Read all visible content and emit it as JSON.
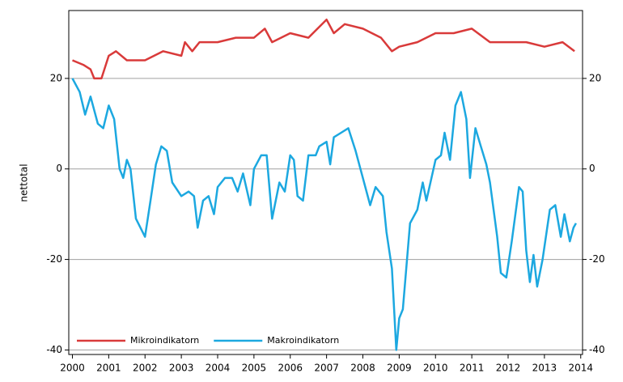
{
  "chart_data": {
    "type": "line",
    "y_label": "nettotal",
    "xlim": [
      1999.9,
      2014.05
    ],
    "ylim": [
      -41,
      35
    ],
    "xticks": [
      2000,
      2001,
      2002,
      2003,
      2004,
      2005,
      2006,
      2007,
      2008,
      2009,
      2010,
      2011,
      2012,
      2013,
      2014
    ],
    "yticks": [
      -40,
      -20,
      0,
      20
    ],
    "grid": true,
    "legend": "bottom-left",
    "series": [
      {
        "name": "Mikroindikatorn",
        "color": "#d93a3a",
        "x": [
          2000,
          2000.3,
          2000.5,
          2000.6,
          2000.8,
          2001,
          2001.2,
          2001.5,
          2002,
          2002.5,
          2003,
          2003.1,
          2003.3,
          2003.5,
          2004,
          2004.5,
          2005,
          2005.3,
          2005.5,
          2006,
          2006.5,
          2007,
          2007.2,
          2007.5,
          2008,
          2008.5,
          2008.8,
          2009,
          2009.5,
          2010,
          2010.5,
          2011,
          2011.5,
          2012,
          2012.5,
          2013,
          2013.5,
          2013.83
        ],
        "values": [
          24,
          23,
          22,
          20,
          20,
          25,
          26,
          24,
          24,
          26,
          25,
          28,
          26,
          28,
          28,
          29,
          29,
          31,
          28,
          30,
          29,
          33,
          30,
          32,
          31,
          29,
          26,
          27,
          28,
          30,
          30,
          31,
          28,
          28,
          28,
          27,
          28,
          26
        ]
      },
      {
        "name": "Makroindikatorn",
        "color": "#1ca8e0",
        "x": [
          2000,
          2000.2,
          2000.35,
          2000.5,
          2000.7,
          2000.85,
          2001,
          2001.15,
          2001.3,
          2001.4,
          2001.5,
          2001.6,
          2001.75,
          2002,
          2002.15,
          2002.3,
          2002.45,
          2002.6,
          2002.75,
          2003,
          2003.2,
          2003.35,
          2003.45,
          2003.6,
          2003.75,
          2003.9,
          2004,
          2004.2,
          2004.4,
          2004.55,
          2004.7,
          2004.9,
          2005,
          2005.2,
          2005.35,
          2005.5,
          2005.7,
          2005.85,
          2006,
          2006.1,
          2006.2,
          2006.35,
          2006.5,
          2006.7,
          2006.8,
          2007,
          2007.1,
          2007.2,
          2007.4,
          2007.6,
          2007.8,
          2008,
          2008.2,
          2008.35,
          2008.55,
          2008.65,
          2008.8,
          2008.92,
          2009,
          2009.1,
          2009.3,
          2009.5,
          2009.65,
          2009.75,
          2010,
          2010.15,
          2010.25,
          2010.4,
          2010.55,
          2010.7,
          2010.85,
          2010.95,
          2011.1,
          2011.25,
          2011.4,
          2011.5,
          2011.7,
          2011.8,
          2011.95,
          2012.1,
          2012.3,
          2012.4,
          2012.5,
          2012.6,
          2012.7,
          2012.8,
          2012.95,
          2013.15,
          2013.3,
          2013.45,
          2013.55,
          2013.7,
          2013.8,
          2013.87
        ],
        "values": [
          20,
          17,
          12,
          16,
          10,
          9,
          14,
          11,
          0,
          -2,
          2,
          0,
          -11,
          -15,
          -7,
          1,
          5,
          4,
          -3,
          -6,
          -5,
          -6,
          -13,
          -7,
          -6,
          -10,
          -4,
          -2,
          -2,
          -5,
          -1,
          -8,
          0,
          3,
          3,
          -11,
          -3,
          -5,
          3,
          2,
          -6,
          -7,
          3,
          3,
          5,
          6,
          1,
          7,
          8,
          9,
          4,
          -2,
          -8,
          -4,
          -6,
          -14,
          -22,
          -40,
          -33,
          -31,
          -12,
          -9,
          -3,
          -7,
          2,
          3,
          8,
          2,
          14,
          17,
          11,
          -2,
          9,
          5,
          1,
          -3,
          -15,
          -23,
          -24,
          -16,
          -4,
          -5,
          -18,
          -25,
          -19,
          -26,
          -20,
          -9,
          -8,
          -15,
          -10,
          -16,
          -13,
          -12
        ]
      }
    ]
  }
}
